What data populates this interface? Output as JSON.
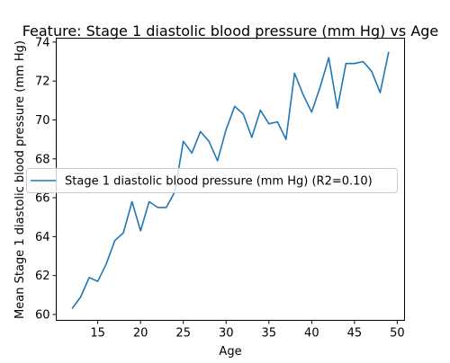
{
  "chart_data": {
    "type": "line",
    "title": "Feature: Stage 1 diastolic blood pressure (mm Hg) vs Age",
    "xlabel": "Age",
    "ylabel": "Mean Stage 1 diastolic blood pressure (mm Hg)",
    "xlim": [
      10.15,
      50.85
    ],
    "ylim": [
      59.7,
      74.2
    ],
    "xticks": [
      15,
      20,
      25,
      30,
      35,
      40,
      45,
      50
    ],
    "yticks": [
      60,
      62,
      64,
      66,
      68,
      70,
      72,
      74
    ],
    "grid": false,
    "legend_position": "center-right",
    "series": [
      {
        "name": "Stage 1 diastolic blood pressure (mm Hg) (R2=0.10)",
        "color": "#1f77b4",
        "x": [
          12,
          13,
          14,
          15,
          16,
          17,
          18,
          19,
          20,
          21,
          22,
          23,
          24,
          25,
          26,
          27,
          28,
          29,
          30,
          31,
          32,
          33,
          34,
          35,
          36,
          37,
          38,
          39,
          40,
          41,
          42,
          43,
          44,
          45,
          46,
          47,
          48,
          49
        ],
        "values": [
          60.3,
          60.9,
          61.9,
          61.7,
          62.6,
          63.8,
          64.2,
          65.8,
          64.3,
          65.8,
          65.5,
          65.5,
          66.3,
          68.9,
          68.3,
          69.4,
          68.9,
          67.9,
          69.5,
          70.7,
          70.3,
          69.1,
          70.5,
          69.8,
          69.9,
          69.0,
          72.4,
          71.3,
          70.4,
          71.7,
          73.2,
          70.6,
          72.9,
          72.9,
          73.0,
          72.5,
          71.4,
          73.5
        ]
      }
    ]
  }
}
